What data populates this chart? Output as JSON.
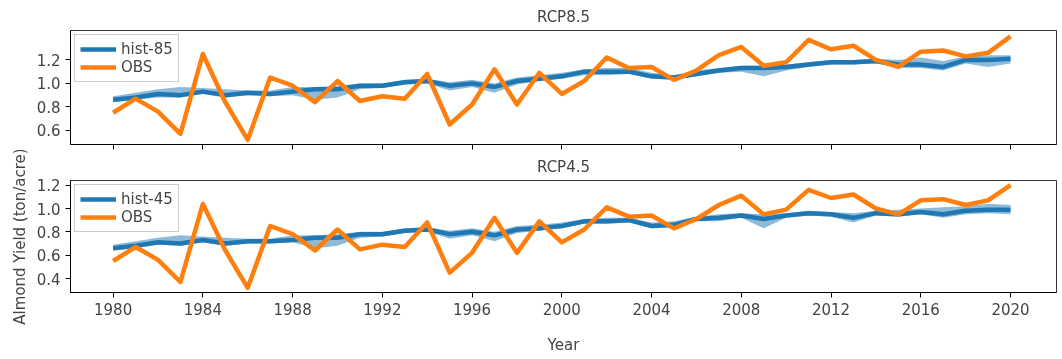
{
  "chart_data": [
    {
      "type": "line",
      "title": "RCP8.5",
      "x": [
        1980,
        1981,
        1982,
        1983,
        1984,
        1985,
        1986,
        1987,
        1988,
        1989,
        1990,
        1991,
        1992,
        1993,
        1994,
        1995,
        1996,
        1997,
        1998,
        1999,
        2000,
        2001,
        2002,
        2003,
        2004,
        2005,
        2006,
        2007,
        2008,
        2009,
        2010,
        2011,
        2012,
        2013,
        2014,
        2015,
        2016,
        2017,
        2018,
        2019,
        2020
      ],
      "series": [
        {
          "name": "hist-85",
          "color": "#1f77b4",
          "values": [
            0.86,
            0.88,
            0.91,
            0.9,
            0.93,
            0.9,
            0.92,
            0.91,
            0.93,
            0.95,
            0.95,
            0.98,
            0.98,
            1.01,
            1.02,
            0.98,
            1.0,
            0.97,
            1.02,
            1.04,
            1.06,
            1.1,
            1.1,
            1.1,
            1.06,
            1.05,
            1.08,
            1.11,
            1.13,
            1.13,
            1.14,
            1.16,
            1.18,
            1.18,
            1.19,
            1.16,
            1.16,
            1.14,
            1.2,
            1.2,
            1.21
          ],
          "lower": [
            0.84,
            0.86,
            0.88,
            0.88,
            0.91,
            0.88,
            0.9,
            0.89,
            0.9,
            0.86,
            0.88,
            0.95,
            0.96,
            0.99,
            1.0,
            0.94,
            0.97,
            0.92,
            0.99,
            1.02,
            1.04,
            1.07,
            1.07,
            1.08,
            1.04,
            1.03,
            1.06,
            1.09,
            1.1,
            1.06,
            1.11,
            1.14,
            1.16,
            1.16,
            1.17,
            1.13,
            1.13,
            1.11,
            1.17,
            1.14,
            1.17
          ],
          "upper": [
            0.89,
            0.92,
            0.95,
            0.97,
            0.96,
            0.95,
            0.94,
            0.94,
            0.97,
            0.97,
            0.98,
            1.0,
            1.0,
            1.03,
            1.04,
            1.01,
            1.03,
            1.0,
            1.05,
            1.07,
            1.09,
            1.12,
            1.13,
            1.13,
            1.09,
            1.07,
            1.11,
            1.13,
            1.15,
            1.15,
            1.16,
            1.18,
            1.2,
            1.2,
            1.21,
            1.2,
            1.22,
            1.19,
            1.23,
            1.24,
            1.24
          ]
        },
        {
          "name": "OBS",
          "color": "#ff7f0e",
          "values": [
            0.75,
            0.87,
            0.76,
            0.57,
            1.25,
            0.84,
            0.52,
            1.05,
            0.98,
            0.84,
            1.02,
            0.85,
            0.89,
            0.87,
            1.08,
            0.65,
            0.82,
            1.12,
            0.82,
            1.09,
            0.91,
            1.02,
            1.22,
            1.13,
            1.14,
            1.03,
            1.11,
            1.24,
            1.31,
            1.15,
            1.18,
            1.37,
            1.29,
            1.32,
            1.2,
            1.14,
            1.27,
            1.28,
            1.23,
            1.26,
            1.4
          ]
        }
      ],
      "xlim": [
        1978.1,
        2022.05
      ],
      "xticks": [
        1980,
        1984,
        1988,
        1992,
        1996,
        2000,
        2004,
        2008,
        2012,
        2016,
        2020
      ],
      "ylim": [
        0.48,
        1.45
      ],
      "yticks": [
        0.6,
        0.8,
        {
          "value": 1,
          "label": "1.0"
        },
        1.2
      ],
      "tick_labels": "y",
      "legend": "top left",
      "grid": false,
      "line_style": "solid",
      "marker": "none"
    },
    {
      "type": "line",
      "title": "RCP4.5",
      "xlabel": "Year",
      "ylabel": "Almond Yield (ton/acre)",
      "x": [
        1980,
        1981,
        1982,
        1983,
        1984,
        1985,
        1986,
        1987,
        1988,
        1989,
        1990,
        1991,
        1992,
        1993,
        1994,
        1995,
        1996,
        1997,
        1998,
        1999,
        2000,
        2001,
        2002,
        2003,
        2004,
        2005,
        2006,
        2007,
        2008,
        2009,
        2010,
        2011,
        2012,
        2013,
        2014,
        2015,
        2016,
        2017,
        2018,
        2019,
        2020
      ],
      "series": [
        {
          "name": "hist-45",
          "color": "#1f77b4",
          "values": [
            0.66,
            0.68,
            0.71,
            0.7,
            0.73,
            0.7,
            0.72,
            0.72,
            0.73,
            0.75,
            0.75,
            0.78,
            0.78,
            0.81,
            0.82,
            0.78,
            0.8,
            0.77,
            0.82,
            0.83,
            0.85,
            0.89,
            0.89,
            0.9,
            0.85,
            0.86,
            0.91,
            0.92,
            0.94,
            0.91,
            0.94,
            0.96,
            0.95,
            0.92,
            0.96,
            0.95,
            0.97,
            0.95,
            0.98,
            0.99,
            0.99
          ],
          "lower": [
            0.64,
            0.66,
            0.69,
            0.68,
            0.71,
            0.68,
            0.7,
            0.7,
            0.71,
            0.66,
            0.68,
            0.75,
            0.76,
            0.79,
            0.8,
            0.74,
            0.77,
            0.72,
            0.79,
            0.81,
            0.83,
            0.87,
            0.87,
            0.88,
            0.83,
            0.84,
            0.89,
            0.89,
            0.92,
            0.83,
            0.92,
            0.94,
            0.93,
            0.88,
            0.94,
            0.93,
            0.95,
            0.92,
            0.95,
            0.96,
            0.95
          ],
          "upper": [
            0.69,
            0.72,
            0.75,
            0.77,
            0.76,
            0.75,
            0.74,
            0.74,
            0.77,
            0.77,
            0.78,
            0.8,
            0.8,
            0.83,
            0.84,
            0.81,
            0.83,
            0.8,
            0.85,
            0.86,
            0.88,
            0.91,
            0.92,
            0.92,
            0.88,
            0.89,
            0.93,
            0.95,
            0.96,
            0.95,
            0.96,
            0.98,
            0.97,
            0.96,
            0.98,
            0.99,
            1.0,
            1.01,
            1.02,
            1.04,
            1.03
          ]
        },
        {
          "name": "OBS",
          "color": "#ff7f0e",
          "values": [
            0.55,
            0.67,
            0.56,
            0.37,
            1.04,
            0.64,
            0.32,
            0.85,
            0.78,
            0.64,
            0.82,
            0.65,
            0.69,
            0.67,
            0.88,
            0.45,
            0.62,
            0.92,
            0.62,
            0.89,
            0.71,
            0.82,
            1.01,
            0.93,
            0.94,
            0.83,
            0.91,
            1.03,
            1.11,
            0.95,
            0.99,
            1.16,
            1.09,
            1.12,
            1.0,
            0.95,
            1.07,
            1.08,
            1.03,
            1.07,
            1.2
          ]
        }
      ],
      "xlim": [
        1978.1,
        2022.05
      ],
      "xticks": [
        1980,
        1984,
        1988,
        1992,
        1996,
        2000,
        2004,
        2008,
        2012,
        2016,
        2020
      ],
      "ylim": [
        0.28,
        1.24
      ],
      "yticks": [
        0.4,
        0.6,
        0.8,
        {
          "value": 1,
          "label": "1.0"
        },
        1.2
      ],
      "legend": "top left",
      "grid": false,
      "line_style": "solid",
      "marker": "none"
    }
  ]
}
